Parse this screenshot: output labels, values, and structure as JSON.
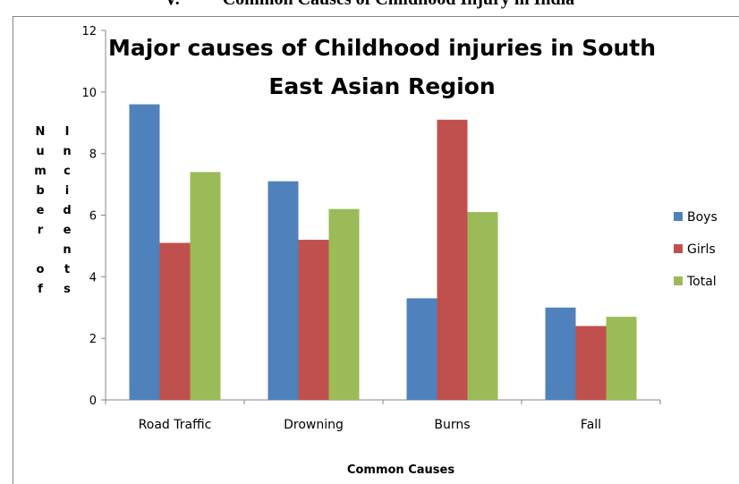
{
  "heading": {
    "number": "V.",
    "text": "Common Causes of Childhood Injury in India"
  },
  "colors": {
    "Boys": "#4f81bd",
    "Girls": "#c0504d",
    "Total": "#9bbb59",
    "axis": "#868686"
  },
  "chart_data": {
    "type": "bar",
    "title_lines": [
      "Major causes of Childhood injuries in South",
      "East Asian Region"
    ],
    "xlabel": "Common Causes",
    "ylabel_columns": [
      "Number of",
      "Incidents"
    ],
    "categories": [
      "Road Traffic",
      "Drowning",
      "Burns",
      "Fall"
    ],
    "series": [
      {
        "name": "Boys",
        "values": [
          9.6,
          7.1,
          3.3,
          3.0
        ]
      },
      {
        "name": "Girls",
        "values": [
          5.1,
          5.2,
          9.1,
          2.4
        ]
      },
      {
        "name": "Total",
        "values": [
          7.4,
          6.2,
          6.1,
          2.7
        ]
      }
    ],
    "ylim": [
      0,
      12
    ],
    "yticks": [
      0,
      2,
      4,
      6,
      8,
      10,
      12
    ],
    "grid": false,
    "legend_position": "right"
  }
}
